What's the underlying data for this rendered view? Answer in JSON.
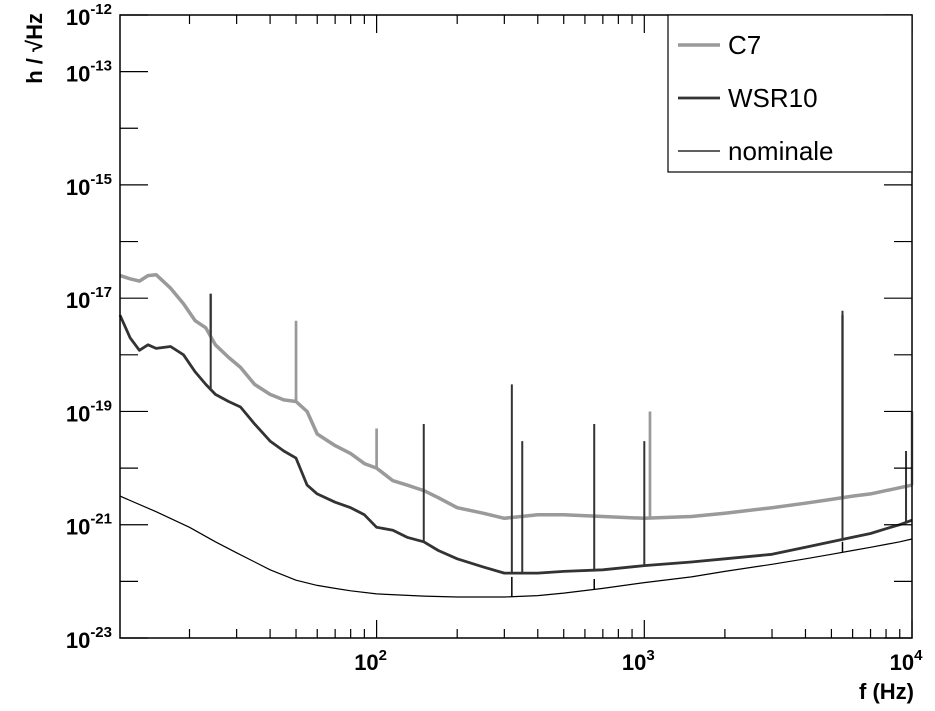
{
  "chart_data": {
    "type": "line",
    "xlabel": "f (Hz)",
    "ylabel": "h / √Hz",
    "xscale": "log",
    "yscale": "log",
    "xlim": [
      11,
      10000
    ],
    "ylim": [
      1e-23,
      1e-12
    ],
    "grid": false,
    "legend_position": "top-right",
    "x_ticks": [
      {
        "value": 100,
        "base": "10",
        "exp": "2"
      },
      {
        "value": 1000,
        "base": "10",
        "exp": "3"
      },
      {
        "value": 10000,
        "base": "10",
        "exp": "4"
      }
    ],
    "y_ticks": [
      {
        "value": 1e-23,
        "base": "10",
        "exp": "-23"
      },
      {
        "value": 1e-21,
        "base": "10",
        "exp": "-21"
      },
      {
        "value": 1e-19,
        "base": "10",
        "exp": "-19"
      },
      {
        "value": 1e-17,
        "base": "10",
        "exp": "-17"
      },
      {
        "value": 1e-15,
        "base": "10",
        "exp": "-15"
      },
      {
        "value": 1e-13,
        "base": "10",
        "exp": "-13"
      },
      {
        "value": 1e-12,
        "base": "10",
        "exp": "-12"
      }
    ],
    "series": [
      {
        "name": "C7",
        "color": "#9a9a9a",
        "width": 3.5,
        "x": [
          11,
          12,
          13,
          14,
          15,
          17,
          19,
          21,
          23,
          25,
          28,
          31,
          35,
          40,
          45,
          50,
          55,
          60,
          70,
          80,
          90,
          100,
          115,
          130,
          150,
          170,
          200,
          250,
          300,
          400,
          500,
          700,
          1000,
          1500,
          2000,
          3000,
          4000,
          5000,
          6000,
          7000,
          8000,
          9000,
          10000
        ],
        "y": [
          2.5e-17,
          2.2e-17,
          2e-17,
          2.5e-17,
          2.6e-17,
          1.5e-17,
          8e-18,
          4e-18,
          3e-18,
          1.5e-18,
          9e-19,
          6e-19,
          3e-19,
          2e-19,
          1.6e-19,
          1.5e-19,
          1e-19,
          4e-20,
          2.5e-20,
          1.8e-20,
          1.2e-20,
          1e-20,
          6e-21,
          5e-21,
          4e-21,
          3e-21,
          2e-21,
          1.6e-21,
          1.3e-21,
          1.5e-21,
          1.5e-21,
          1.4e-21,
          1.3e-21,
          1.4e-21,
          1.6e-21,
          2e-21,
          2.4e-21,
          2.8e-21,
          3.2e-21,
          3.5e-21,
          4e-21,
          4.5e-21,
          5e-21
        ]
      },
      {
        "name": "WSR10",
        "color": "#333333",
        "width": 2.8,
        "x": [
          11,
          12,
          13,
          14,
          15,
          17,
          19,
          21,
          23,
          25,
          28,
          31,
          35,
          40,
          45,
          50,
          55,
          60,
          70,
          80,
          90,
          100,
          115,
          130,
          150,
          170,
          200,
          250,
          300,
          400,
          500,
          700,
          1000,
          1500,
          2000,
          3000,
          4000,
          5000,
          6000,
          7000,
          8000,
          9000,
          10000
        ],
        "y": [
          5e-18,
          2e-18,
          1.2e-18,
          1.5e-18,
          1.3e-18,
          1.4e-18,
          1e-18,
          5e-19,
          3e-19,
          2e-19,
          1.5e-19,
          1.2e-19,
          6e-20,
          3e-20,
          2e-20,
          1.5e-20,
          5e-21,
          3.5e-21,
          2.5e-21,
          2e-21,
          1.5e-21,
          9e-22,
          8e-22,
          6e-22,
          5e-22,
          3.5e-22,
          2.5e-22,
          1.8e-22,
          1.4e-22,
          1.4e-22,
          1.5e-22,
          1.6e-22,
          1.9e-22,
          2.2e-22,
          2.5e-22,
          3e-22,
          4e-22,
          5e-22,
          6e-22,
          7e-22,
          8.5e-22,
          1e-21,
          1.2e-21
        ]
      },
      {
        "name": "nominale",
        "color": "#000000",
        "width": 1.2,
        "x": [
          11,
          15,
          20,
          25,
          30,
          40,
          50,
          60,
          70,
          80,
          100,
          150,
          200,
          300,
          400,
          500,
          700,
          1000,
          1500,
          2000,
          3000,
          4000,
          5000,
          6000,
          7000,
          8000,
          9000,
          10000
        ],
        "y": [
          3.2e-21,
          1.7e-21,
          9e-22,
          5e-22,
          3.2e-22,
          1.6e-22,
          1.05e-22,
          8.5e-23,
          7.5e-23,
          6.8e-23,
          6e-23,
          5.5e-23,
          5.3e-23,
          5.3e-23,
          5.6e-23,
          6.2e-23,
          7.5e-23,
          9.5e-23,
          1.2e-22,
          1.5e-22,
          2e-22,
          2.5e-22,
          3e-22,
          3.5e-22,
          4e-22,
          4.5e-22,
          5e-22,
          5.6e-22
        ]
      }
    ],
    "peaks": [
      {
        "series": "C7",
        "x": 24,
        "y": 1.2e-17
      },
      {
        "series": "C7",
        "x": 50,
        "y": 4e-18
      },
      {
        "series": "C7",
        "x": 50,
        "y": 1.8e-19
      },
      {
        "series": "C7",
        "x": 100,
        "y": 5e-20
      },
      {
        "series": "C7",
        "x": 1050,
        "y": 1e-19
      },
      {
        "series": "C7",
        "x": 5500,
        "y": 5e-18
      },
      {
        "series": "C7",
        "x": 10000,
        "y": 1e-19
      },
      {
        "series": "WSR10",
        "x": 24,
        "y": 1.2e-17
      },
      {
        "series": "WSR10",
        "x": 150,
        "y": 6e-20
      },
      {
        "series": "WSR10",
        "x": 320,
        "y": 3e-19
      },
      {
        "series": "WSR10",
        "x": 350,
        "y": 3e-20
      },
      {
        "series": "WSR10",
        "x": 650,
        "y": 6e-20
      },
      {
        "series": "WSR10",
        "x": 1000,
        "y": 3e-20
      },
      {
        "series": "WSR10",
        "x": 5500,
        "y": 6e-18
      },
      {
        "series": "WSR10",
        "x": 9500,
        "y": 2e-20
      },
      {
        "series": "nominale",
        "x": 320,
        "y": 1.2e-22
      },
      {
        "series": "nominale",
        "x": 650,
        "y": 1.1e-22
      },
      {
        "series": "nominale",
        "x": 5500,
        "y": 5e-22
      }
    ]
  }
}
